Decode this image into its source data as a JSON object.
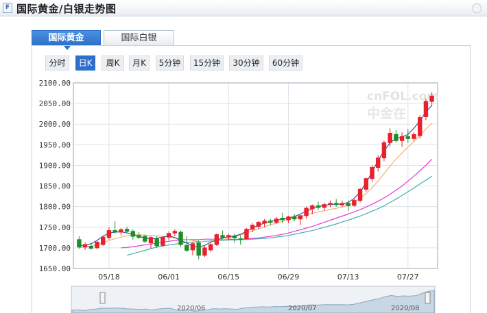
{
  "header": {
    "title": "国际黄金/白银走势图",
    "favicon_icon": "document-icon"
  },
  "tabs": [
    {
      "label": "国际黄金",
      "active": true
    },
    {
      "label": "国际白银",
      "active": false
    }
  ],
  "periods": [
    {
      "label": "分时",
      "selected": false
    },
    {
      "label": "日K",
      "selected": true
    },
    {
      "label": "周K",
      "selected": false
    },
    {
      "label": "月K",
      "selected": false
    },
    {
      "label": "5分钟",
      "selected": false
    },
    {
      "label": "15分钟",
      "selected": false
    },
    {
      "label": "30分钟",
      "selected": false
    },
    {
      "label": "60分钟",
      "selected": false
    }
  ],
  "watermark": {
    "brand": "cnFOL.com",
    "chinese": "中金在"
  },
  "navigator": {
    "labels": [
      "2020/06",
      "2020/07",
      "2020/08"
    ]
  },
  "colors": {
    "up": "#e8212a",
    "down": "#1a8f2a",
    "ma5": "#3d4fa8",
    "ma10": "#f0b27a",
    "ma20": "#e63bd6",
    "ma30": "#3fb0b2",
    "grid": "#dfe3e8"
  },
  "chart_data": {
    "type": "candlestick",
    "ylim": [
      1650,
      2100
    ],
    "yticks": [
      "2100.00",
      "2050.00",
      "2000.00",
      "1950.00",
      "1900.00",
      "1850.00",
      "1800.00",
      "1750.00",
      "1700.00",
      "1650.00"
    ],
    "xticks": [
      {
        "label": "05/18",
        "index": 5
      },
      {
        "label": "06/01",
        "index": 15
      },
      {
        "label": "06/15",
        "index": 25
      },
      {
        "label": "06/29",
        "index": 35
      },
      {
        "label": "07/13",
        "index": 45
      },
      {
        "label": "07/27",
        "index": 55
      }
    ],
    "candles": [
      [
        1720,
        1728,
        1698,
        1702
      ],
      [
        1702,
        1713,
        1695,
        1708
      ],
      [
        1704,
        1712,
        1696,
        1699
      ],
      [
        1700,
        1716,
        1697,
        1714
      ],
      [
        1708,
        1730,
        1705,
        1726
      ],
      [
        1725,
        1750,
        1720,
        1742
      ],
      [
        1742,
        1764,
        1735,
        1738
      ],
      [
        1738,
        1748,
        1730,
        1744
      ],
      [
        1745,
        1751,
        1737,
        1740
      ],
      [
        1740,
        1745,
        1720,
        1728
      ],
      [
        1730,
        1738,
        1722,
        1725
      ],
      [
        1728,
        1732,
        1712,
        1716
      ],
      [
        1712,
        1728,
        1698,
        1725
      ],
      [
        1722,
        1728,
        1700,
        1705
      ],
      [
        1706,
        1728,
        1702,
        1725
      ],
      [
        1726,
        1740,
        1718,
        1735
      ],
      [
        1736,
        1745,
        1728,
        1740
      ],
      [
        1738,
        1742,
        1702,
        1708
      ],
      [
        1706,
        1728,
        1690,
        1694
      ],
      [
        1695,
        1715,
        1682,
        1710
      ],
      [
        1712,
        1718,
        1672,
        1682
      ],
      [
        1682,
        1705,
        1678,
        1700
      ],
      [
        1695,
        1712,
        1690,
        1708
      ],
      [
        1708,
        1735,
        1705,
        1732
      ],
      [
        1730,
        1742,
        1722,
        1725
      ],
      [
        1726,
        1735,
        1718,
        1730
      ],
      [
        1728,
        1734,
        1712,
        1724
      ],
      [
        1722,
        1730,
        1708,
        1720
      ],
      [
        1722,
        1748,
        1720,
        1745
      ],
      [
        1745,
        1760,
        1738,
        1755
      ],
      [
        1752,
        1765,
        1745,
        1762
      ],
      [
        1760,
        1770,
        1750,
        1765
      ],
      [
        1765,
        1770,
        1755,
        1762
      ],
      [
        1762,
        1775,
        1758,
        1770
      ],
      [
        1772,
        1785,
        1760,
        1768
      ],
      [
        1768,
        1778,
        1760,
        1775
      ],
      [
        1775,
        1782,
        1765,
        1770
      ],
      [
        1770,
        1780,
        1755,
        1778
      ],
      [
        1778,
        1800,
        1770,
        1796
      ],
      [
        1795,
        1805,
        1782,
        1802
      ],
      [
        1802,
        1812,
        1792,
        1798
      ],
      [
        1798,
        1810,
        1790,
        1805
      ],
      [
        1806,
        1815,
        1798,
        1808
      ],
      [
        1808,
        1818,
        1800,
        1805
      ],
      [
        1804,
        1815,
        1798,
        1808
      ],
      [
        1808,
        1815,
        1790,
        1802
      ],
      [
        1803,
        1820,
        1800,
        1815
      ],
      [
        1815,
        1845,
        1810,
        1842
      ],
      [
        1842,
        1870,
        1836,
        1868
      ],
      [
        1868,
        1900,
        1860,
        1895
      ],
      [
        1895,
        1925,
        1885,
        1918
      ],
      [
        1918,
        1960,
        1910,
        1955
      ],
      [
        1955,
        1990,
        1945,
        1978
      ],
      [
        1975,
        1985,
        1955,
        1960
      ],
      [
        1960,
        1980,
        1945,
        1970
      ],
      [
        1970,
        1988,
        1955,
        1965
      ],
      [
        1965,
        1980,
        1958,
        1975
      ],
      [
        1972,
        2022,
        1965,
        2016
      ],
      [
        2018,
        2062,
        2010,
        2055
      ],
      [
        2055,
        2078,
        2045,
        2068
      ]
    ],
    "ma5": [
      1705,
      1707,
      1710,
      1718,
      1728,
      1736,
      1738,
      1739,
      1736,
      1733,
      1728,
      1724,
      1722,
      1723,
      1726,
      1729,
      1725,
      1718,
      1712,
      1704,
      1702,
      1706,
      1714,
      1719,
      1724,
      1727,
      1729,
      1733,
      1740,
      1748,
      1755,
      1760,
      1764,
      1767,
      1769,
      1772,
      1776,
      1782,
      1789,
      1795,
      1800,
      1803,
      1805,
      1806,
      1806,
      1810,
      1820,
      1835,
      1858,
      1884,
      1912,
      1935,
      1955,
      1965,
      1969,
      1975,
      1990,
      2008,
      2030,
      2045
    ],
    "ma10": [
      1700,
      1702,
      1704,
      1708,
      1712,
      1718,
      1722,
      1726,
      1729,
      1731,
      1732,
      1731,
      1730,
      1729,
      1728,
      1726,
      1724,
      1722,
      1720,
      1718,
      1716,
      1715,
      1716,
      1718,
      1720,
      1723,
      1727,
      1731,
      1736,
      1741,
      1746,
      1751,
      1756,
      1760,
      1764,
      1768,
      1772,
      1776,
      1780,
      1784,
      1787,
      1790,
      1793,
      1796,
      1799,
      1803,
      1810,
      1820,
      1832,
      1846,
      1862,
      1880,
      1898,
      1915,
      1930,
      1944,
      1958,
      1972,
      1988,
      2002
    ],
    "ma20": [
      1700,
      1701,
      1703,
      1705,
      1707,
      1709,
      1712,
      1714,
      1716,
      1718,
      1719,
      1720,
      1720,
      1720,
      1721,
      1721,
      1721,
      1721,
      1721,
      1720,
      1721,
      1722,
      1723,
      1724,
      1726,
      1728,
      1730,
      1733,
      1736,
      1740,
      1744,
      1748,
      1752,
      1757,
      1762,
      1767,
      1772,
      1777,
      1782,
      1787,
      1793,
      1799,
      1806,
      1813,
      1821,
      1830,
      1840,
      1850,
      1862,
      1874,
      1887,
      1900,
      1915
    ],
    "ma30": [
      1682,
      1686,
      1690,
      1694,
      1698,
      1702,
      1705,
      1707,
      1709,
      1711,
      1713,
      1714,
      1715,
      1716,
      1717,
      1718,
      1718,
      1719,
      1719,
      1720,
      1720,
      1721,
      1722,
      1723,
      1724,
      1726,
      1728,
      1730,
      1733,
      1736,
      1739,
      1742,
      1746,
      1750,
      1754,
      1758,
      1763,
      1767,
      1772,
      1777,
      1783,
      1789,
      1795,
      1802,
      1810,
      1818,
      1827,
      1836,
      1845,
      1855,
      1864,
      1874
    ],
    "ma20_start": 7,
    "ma30_start": 8
  }
}
